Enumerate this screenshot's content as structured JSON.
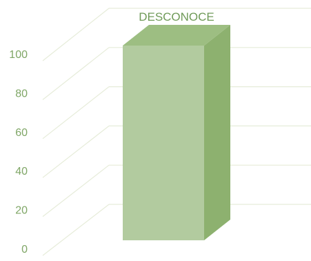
{
  "chart_data": {
    "type": "bar",
    "style": "3d-column",
    "categories": [
      ""
    ],
    "series": [
      {
        "values": [
          100
        ]
      }
    ],
    "data_labels": [
      "DESCONOCE"
    ],
    "yticks": [
      0,
      20,
      40,
      60,
      80,
      100
    ],
    "ylim": [
      0,
      100
    ],
    "grid": true,
    "legend": "none",
    "colors": {
      "bar_front": "#b2cb9f",
      "bar_side": "#8db16f",
      "bar_top": "#9dbe82",
      "gridline": "#e6ecd9",
      "tick_text": "#7fa666",
      "label_text": "#6f9a58"
    }
  }
}
